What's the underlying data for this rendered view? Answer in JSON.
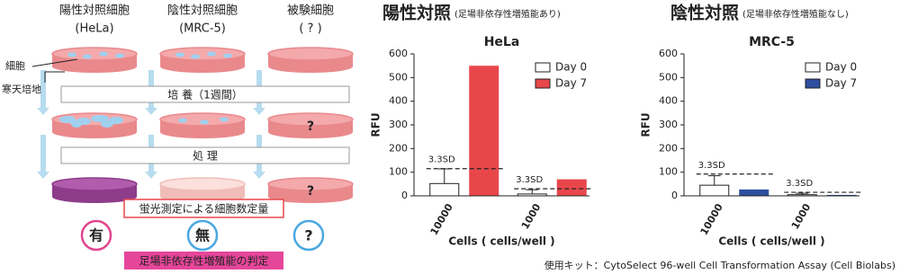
{
  "diagram": {
    "columns": [
      {
        "name": "陽性対照細胞",
        "cell": "(HeLa)"
      },
      {
        "name": "陰性対照細胞",
        "cell": "(MRC-5)"
      },
      {
        "name": "被験細胞",
        "cell": "( ? )"
      }
    ],
    "labels": [
      "細胞",
      "寒天培地"
    ],
    "steps": [
      "培 養（1週間）",
      "処 理"
    ],
    "dish_marks": [
      "?",
      "?"
    ],
    "measure": "蛍光測定による細胞数定量",
    "results": [
      "有",
      "無",
      "?"
    ],
    "judgement": "足場非依存性増殖能の判定"
  },
  "chart_data": [
    {
      "type": "bar",
      "heading": "陽性対照",
      "subheading": "(足場非依存性増殖能あり)",
      "title": "HeLa",
      "categories": [
        "10000",
        "1000"
      ],
      "series": [
        {
          "name": "Day 0",
          "color": "#ffffff",
          "values": [
            52,
            8
          ],
          "errors": [
            62,
            18
          ]
        },
        {
          "name": "Day 7",
          "color": "#e8474a",
          "values": [
            548,
            68
          ]
        }
      ],
      "annotations": [
        {
          "text": "3.3SD",
          "value": 115
        },
        {
          "text": "3.3SD",
          "value": 30
        }
      ],
      "xlabel": "Cells ( cells/well )",
      "ylabel": "RFU",
      "ylim": [
        0,
        600
      ],
      "yticks": [
        0,
        100,
        200,
        300,
        400,
        500,
        600
      ],
      "legend": "upper right"
    },
    {
      "type": "bar",
      "heading": "陰性対照",
      "subheading": "(足場非依存性増殖能なし)",
      "title": "MRC-5",
      "categories": [
        "10000",
        "1000"
      ],
      "series": [
        {
          "name": "Day 0",
          "color": "#ffffff",
          "values": [
            45,
            5
          ],
          "errors": [
            40,
            6
          ]
        },
        {
          "name": "Day 7",
          "color": "#2e4fa0",
          "values": [
            25,
            2
          ]
        }
      ],
      "annotations": [
        {
          "text": "3.3SD",
          "value": 92
        },
        {
          "text": "3.3SD",
          "value": 15
        }
      ],
      "xlabel": "Cells ( cells/well )",
      "ylabel": "RFU",
      "ylim": [
        0,
        600
      ],
      "yticks": [
        0,
        100,
        200,
        300,
        400,
        500,
        600
      ],
      "legend": "upper right"
    }
  ],
  "footnote": "使用キット：CytoSelect 96-well Cell Transformation Assay (Cell Biolabs)"
}
